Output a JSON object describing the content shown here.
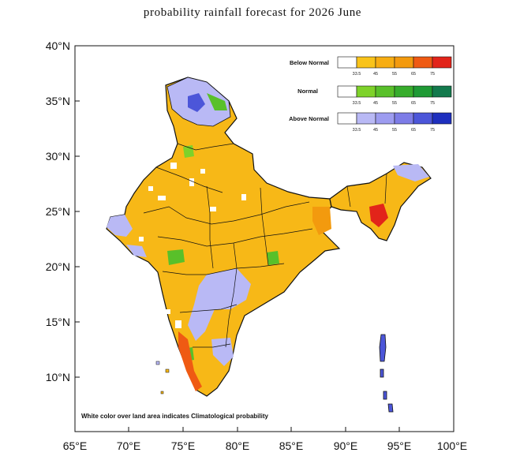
{
  "title": "probability rainfall forecast for 2026 June",
  "axes": {
    "x_ticks": [
      "65°E",
      "70°E",
      "75°E",
      "80°E",
      "85°E",
      "90°E",
      "95°E",
      "100°E"
    ],
    "y_ticks": [
      "40°N",
      "35°N",
      "30°N",
      "25°N",
      "20°N",
      "15°N",
      "10°N"
    ]
  },
  "legend": [
    {
      "label": "Below Normal",
      "ticks": [
        "33.5",
        "45",
        "55",
        "65",
        "75"
      ],
      "colors": [
        "#ffffff",
        "#f9c31a",
        "#f7ad12",
        "#f39a0e",
        "#ef5a13",
        "#e2241a"
      ]
    },
    {
      "label": "Normal",
      "ticks": [
        "33.5",
        "45",
        "55",
        "65",
        "75"
      ],
      "colors": [
        "#ffffff",
        "#7ed22a",
        "#59c02a",
        "#37ad2c",
        "#1f9a35",
        "#137a4d"
      ]
    },
    {
      "label": "Above Normal",
      "ticks": [
        "33.5",
        "45",
        "55",
        "65",
        "75"
      ],
      "colors": [
        "#ffffff",
        "#b9b9f5",
        "#9d9cf0",
        "#7d7ce7",
        "#4c56d9",
        "#1e2fbe"
      ]
    }
  ],
  "footnote": "White color over land area indicates Climatological probability"
}
